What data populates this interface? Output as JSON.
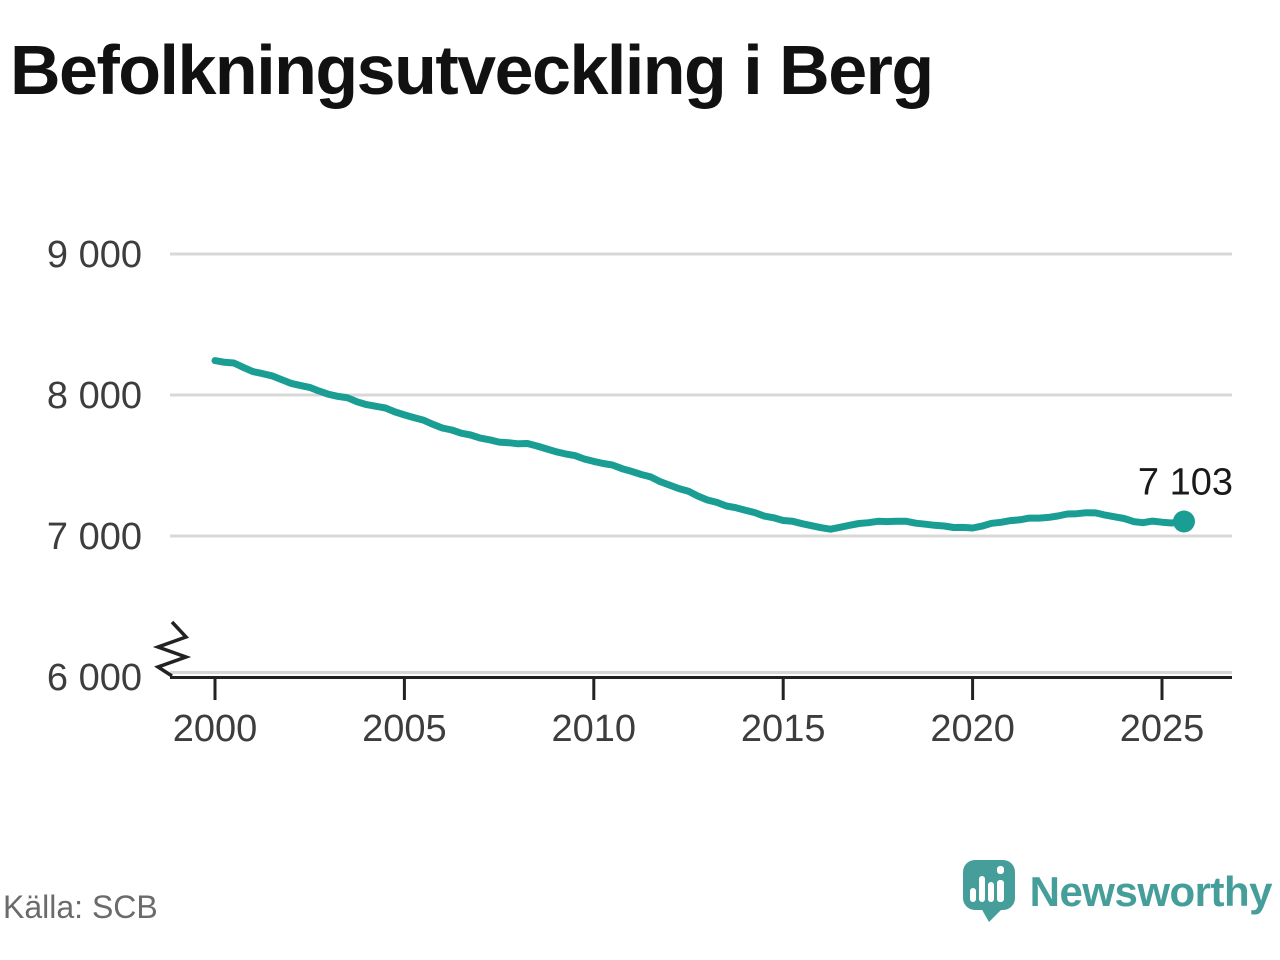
{
  "title": "Befolkningsutveckling i Berg",
  "source_note": "Källa: SCB",
  "branding": {
    "wordmark": "Newsworthy"
  },
  "colors": {
    "series": "#1a9e94",
    "logo": "#459e99",
    "grid": "#d8d8d8",
    "axis": "#222222",
    "tick_text": "#3d3d3d",
    "annotation_text": "#1a1a1a",
    "title_text": "#111111",
    "source_text": "#6b6b6b"
  },
  "chart_data": {
    "type": "line",
    "title": "Befolkningsutveckling i Berg",
    "source": "SCB",
    "x": [
      2000,
      2000.25,
      2000.5,
      2000.75,
      2001,
      2001.25,
      2001.5,
      2001.75,
      2002,
      2002.25,
      2002.5,
      2002.75,
      2003,
      2003.25,
      2003.5,
      2003.75,
      2004,
      2004.25,
      2004.5,
      2004.75,
      2005,
      2005.25,
      2005.5,
      2005.75,
      2006,
      2006.25,
      2006.5,
      2006.75,
      2007,
      2007.25,
      2007.5,
      2007.75,
      2008,
      2008.25,
      2008.5,
      2008.75,
      2009,
      2009.25,
      2009.5,
      2009.75,
      2010,
      2010.25,
      2010.5,
      2010.75,
      2011,
      2011.25,
      2011.5,
      2011.75,
      2012,
      2012.25,
      2012.5,
      2012.75,
      2013,
      2013.25,
      2013.5,
      2013.75,
      2014,
      2014.25,
      2014.5,
      2014.75,
      2015,
      2015.25,
      2015.5,
      2015.75,
      2016,
      2016.25,
      2016.5,
      2016.75,
      2017,
      2017.25,
      2017.5,
      2017.75,
      2018,
      2018.25,
      2018.5,
      2018.75,
      2019,
      2019.25,
      2019.5,
      2019.75,
      2020,
      2020.25,
      2020.5,
      2020.75,
      2021,
      2021.25,
      2021.5,
      2021.75,
      2022,
      2022.25,
      2022.5,
      2022.75,
      2023,
      2023.25,
      2023.5,
      2023.75,
      2024,
      2024.25,
      2024.5,
      2024.75,
      2025,
      2025.25,
      2025.58
    ],
    "values": [
      8244,
      8232,
      8227,
      8196,
      8166,
      8152,
      8136,
      8110,
      8083,
      8068,
      8054,
      8028,
      8005,
      7990,
      7980,
      7952,
      7932,
      7920,
      7908,
      7880,
      7859,
      7840,
      7822,
      7792,
      7766,
      7752,
      7729,
      7716,
      7694,
      7682,
      7666,
      7662,
      7654,
      7656,
      7638,
      7618,
      7598,
      7582,
      7570,
      7546,
      7529,
      7514,
      7503,
      7477,
      7458,
      7436,
      7419,
      7386,
      7361,
      7336,
      7317,
      7283,
      7255,
      7238,
      7213,
      7201,
      7183,
      7166,
      7141,
      7129,
      7110,
      7104,
      7087,
      7073,
      7059,
      7048,
      7062,
      7076,
      7089,
      7094,
      7104,
      7102,
      7105,
      7104,
      7091,
      7084,
      7076,
      7071,
      7060,
      7061,
      7057,
      7070,
      7090,
      7097,
      7109,
      7115,
      7127,
      7127,
      7132,
      7142,
      7156,
      7158,
      7165,
      7164,
      7148,
      7136,
      7124,
      7102,
      7094,
      7106,
      7098,
      7092,
      7103
    ],
    "x_ticks": [
      2000,
      2005,
      2010,
      2015,
      2020,
      2025
    ],
    "x_tick_labels": [
      "2000",
      "2005",
      "2010",
      "2015",
      "2020",
      "2025"
    ],
    "y_ticks": [
      6000,
      7000,
      8000,
      9000
    ],
    "y_tick_labels": [
      "6 000",
      "7 000",
      "8 000",
      "9 000"
    ],
    "ylim": [
      6000,
      9000
    ],
    "xlim": [
      2000,
      2025.8
    ],
    "axis_break_at_bottom": true,
    "grid": "horizontal",
    "legend": "none",
    "series_color": "#1a9e94",
    "last_point_value": 7103,
    "last_point_label": "7 103"
  }
}
